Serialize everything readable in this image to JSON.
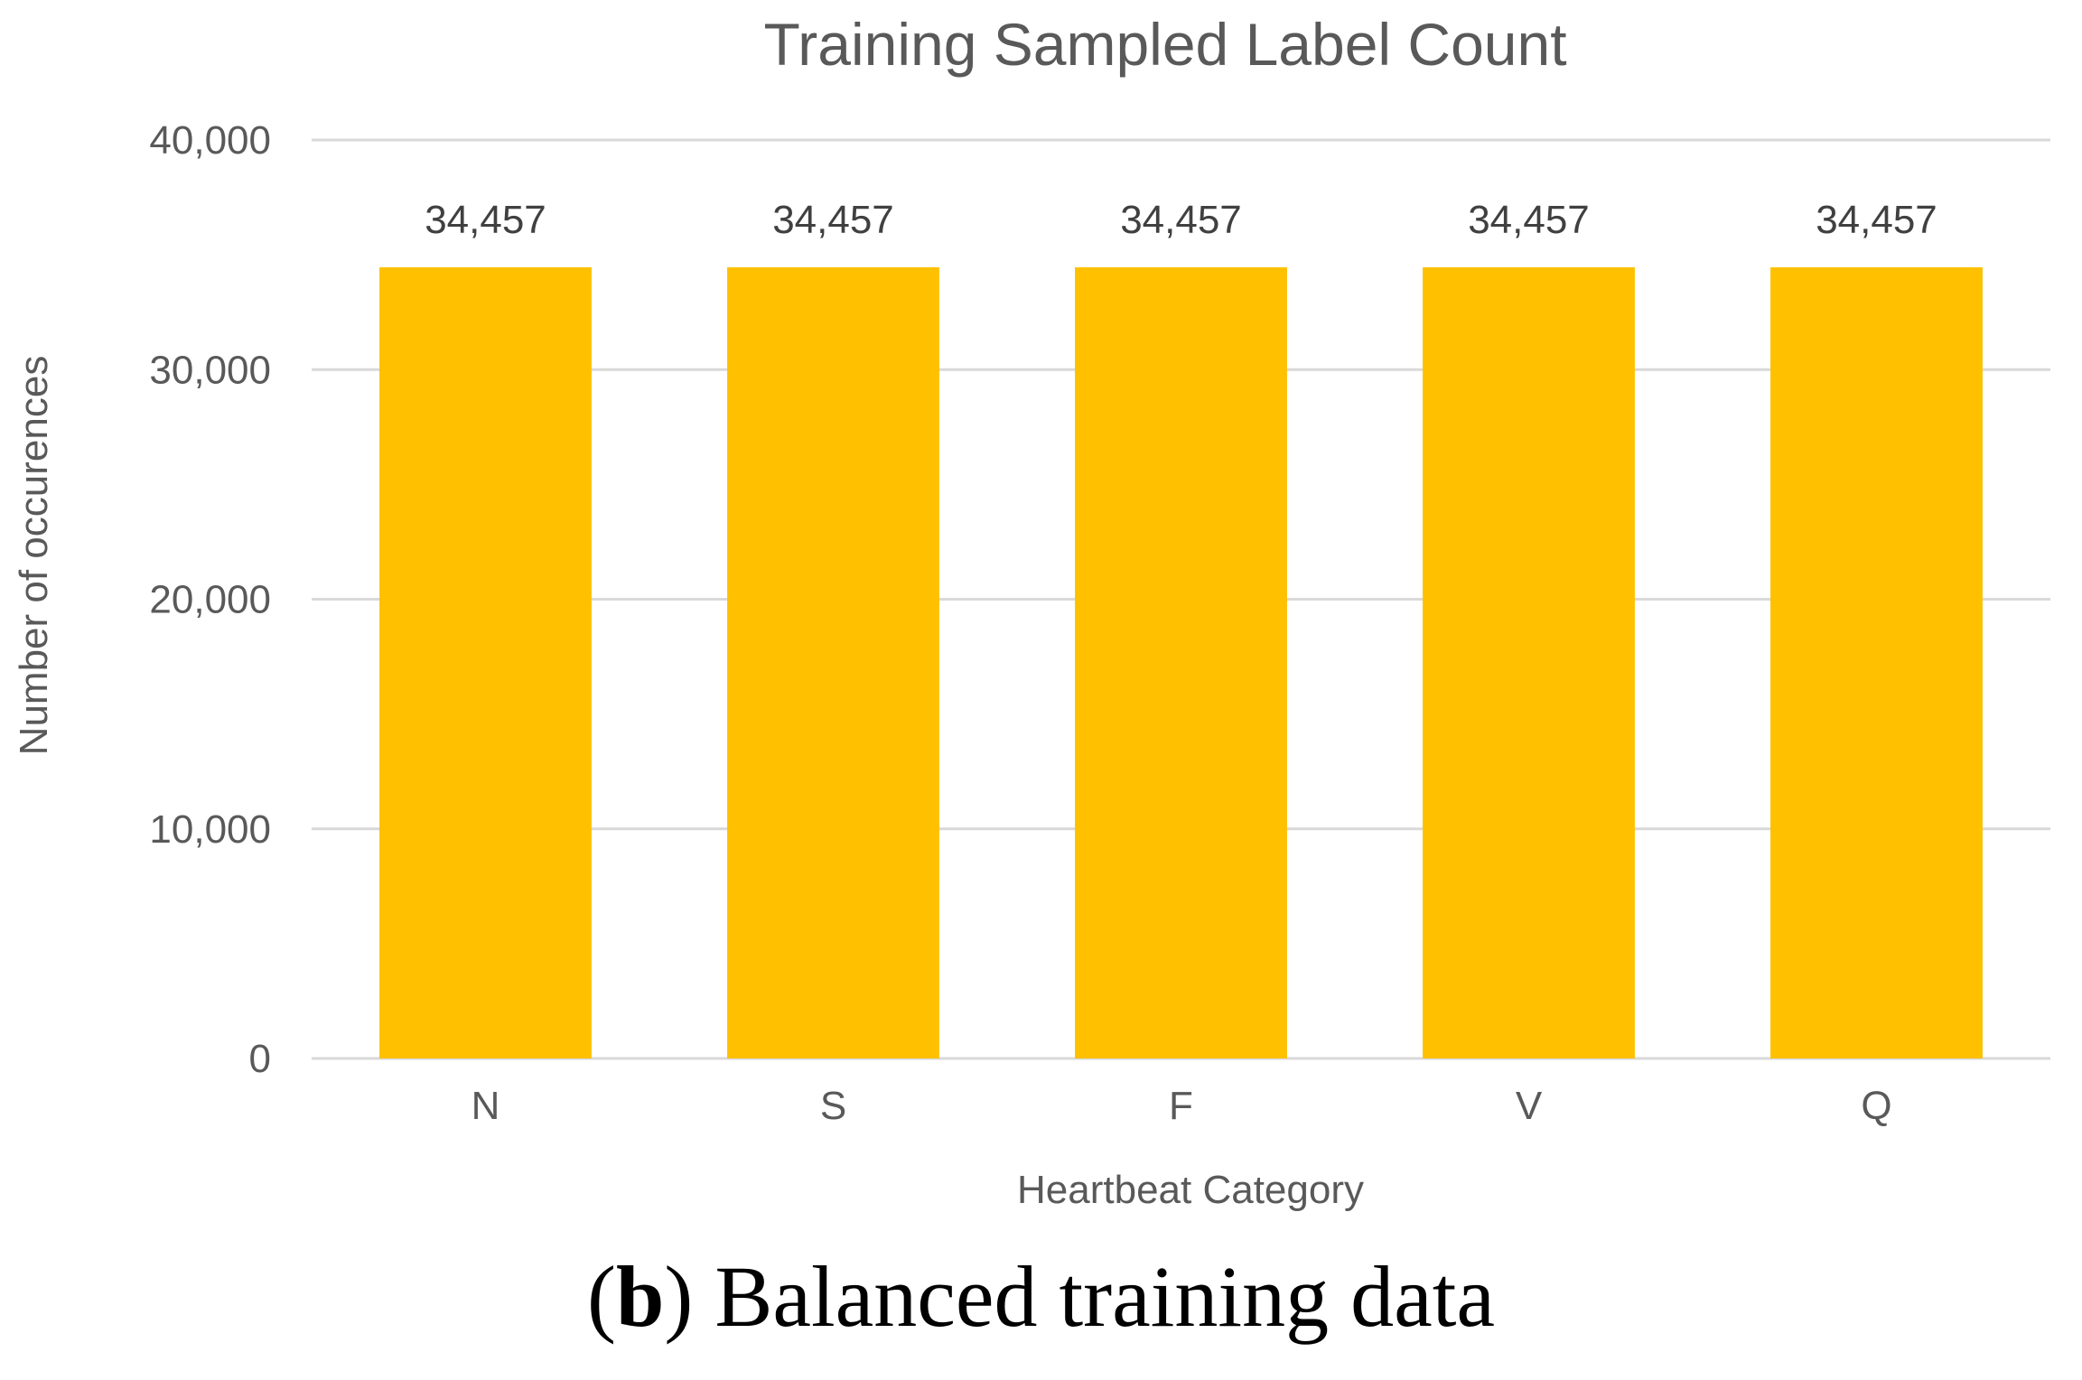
{
  "chart_data": {
    "type": "bar",
    "title": "Training Sampled Label Count",
    "xlabel": "Heartbeat Category",
    "ylabel": "Number of occurences",
    "categories": [
      "N",
      "S",
      "F",
      "V",
      "Q"
    ],
    "values": [
      34457,
      34457,
      34457,
      34457,
      34457
    ],
    "data_labels": [
      "34,457",
      "34,457",
      "34,457",
      "34,457",
      "34,457"
    ],
    "yticks": [
      0,
      10000,
      20000,
      30000,
      40000
    ],
    "ytick_labels": [
      "0",
      "10,000",
      "20,000",
      "30,000",
      "40,000"
    ],
    "ylim": [
      0,
      40000
    ],
    "grid": true,
    "legend": "none",
    "colors": {
      "bar": "#FFC000",
      "grid": "#D9D9D9",
      "text": "#595959"
    }
  },
  "caption": {
    "label": "b",
    "text": "Balanced training data"
  }
}
